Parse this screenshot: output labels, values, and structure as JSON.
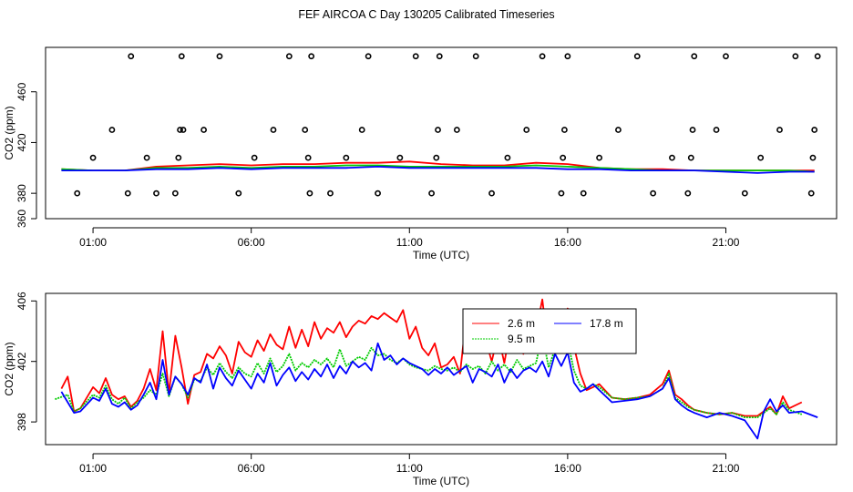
{
  "page_title": "FEF AIRCOA C  Day 130205  Calibrated Timeseries",
  "chart_data": [
    {
      "type": "line+scatter",
      "name": "top",
      "xlabel": "Time (UTC)",
      "ylabel": "CO2 (ppm)",
      "xlim": [
        -0.5,
        24.5
      ],
      "ylim": [
        360,
        495
      ],
      "xticks": [
        1,
        6,
        11,
        16,
        21
      ],
      "xtick_labels": [
        "01:00",
        "06:00",
        "11:00",
        "16:00",
        "21:00"
      ],
      "yticks": [
        360,
        380,
        420,
        460
      ],
      "ytick_labels": [
        "360",
        "380",
        "420",
        "460"
      ],
      "series": [
        {
          "name": "2.6 m",
          "color": "#ff0000",
          "x": [
            0,
            1,
            2,
            3,
            4,
            5,
            6,
            7,
            8,
            9,
            10,
            11,
            12,
            13,
            14,
            15,
            16,
            17,
            18,
            19,
            20,
            21,
            22,
            23,
            23.8
          ],
          "y": [
            399,
            398,
            398,
            401,
            402,
            403,
            402,
            403,
            403,
            404,
            404,
            405,
            403,
            402,
            402,
            404,
            403,
            400,
            399,
            399,
            398,
            398,
            398,
            398,
            398
          ]
        },
        {
          "name": "9.5 m",
          "color": "#00cc00",
          "x": [
            0,
            1,
            2,
            3,
            4,
            5,
            6,
            7,
            8,
            9,
            10,
            11,
            12,
            13,
            14,
            15,
            16,
            17,
            18,
            19,
            20,
            21,
            22,
            23,
            23.8
          ],
          "y": [
            399,
            398,
            398,
            400,
            400,
            401,
            400,
            401,
            401,
            402,
            402,
            401,
            401,
            401,
            401,
            402,
            401,
            400,
            399,
            398,
            398,
            398,
            398,
            398,
            397
          ]
        },
        {
          "name": "17.8 m",
          "color": "#0000ff",
          "x": [
            0,
            1,
            2,
            3,
            4,
            5,
            6,
            7,
            8,
            9,
            10,
            11,
            12,
            13,
            14,
            15,
            16,
            17,
            18,
            19,
            20,
            21,
            22,
            23,
            23.8
          ],
          "y": [
            398,
            398,
            398,
            399,
            399,
            400,
            399,
            400,
            400,
            400,
            401,
            400,
            400,
            400,
            400,
            400,
            399,
            399,
            398,
            398,
            398,
            397,
            396,
            397,
            397
          ]
        },
        {
          "name": "calibration",
          "type": "scatter",
          "marker": "open-circle",
          "x": [
            0.5,
            1.0,
            1.6,
            2.1,
            2.2,
            2.7,
            3.0,
            3.6,
            3.7,
            3.75,
            3.8,
            3.85,
            4.5,
            5.0,
            5.6,
            6.1,
            6.7,
            7.2,
            7.7,
            7.8,
            7.85,
            7.9,
            8.5,
            9.0,
            9.5,
            9.7,
            10.0,
            10.7,
            11.2,
            11.7,
            11.85,
            11.9,
            11.95,
            12.5,
            13.1,
            13.6,
            14.1,
            14.7,
            15.2,
            15.8,
            15.85,
            15.9,
            16.0,
            16.5,
            17.0,
            17.6,
            18.2,
            18.7,
            19.3,
            19.8,
            19.9,
            19.95,
            20.0,
            20.7,
            21.0,
            21.6,
            22.1,
            22.7,
            23.2,
            23.7,
            23.75,
            23.8,
            23.9
          ],
          "y": [
            380,
            408,
            430,
            380,
            488,
            408,
            380,
            380,
            408,
            430,
            488,
            430,
            430,
            488,
            380,
            408,
            430,
            488,
            430,
            408,
            380,
            488,
            380,
            408,
            430,
            488,
            380,
            408,
            488,
            380,
            408,
            430,
            488,
            430,
            488,
            380,
            408,
            430,
            488,
            380,
            408,
            430,
            488,
            380,
            408,
            430,
            488,
            380,
            408,
            380,
            408,
            430,
            488,
            430,
            488,
            380,
            408,
            430,
            488,
            380,
            408,
            430,
            488
          ]
        }
      ]
    },
    {
      "type": "line",
      "name": "bottom",
      "xlabel": "Time (UTC)",
      "ylabel": "CO2 (ppm)",
      "xlim": [
        -0.5,
        24.5
      ],
      "ylim": [
        396.5,
        406.5
      ],
      "xticks": [
        1,
        6,
        11,
        16,
        21
      ],
      "xtick_labels": [
        "01:00",
        "06:00",
        "11:00",
        "16:00",
        "21:00"
      ],
      "yticks": [
        398,
        402,
        406
      ],
      "ytick_labels": [
        "398",
        "402",
        "406"
      ],
      "legend": {
        "position": "top-right-center",
        "entries": [
          "2.6 m",
          "9.5 m",
          "17.8 m"
        ]
      },
      "series": [
        {
          "name": "2.6 m",
          "color": "#ff0000",
          "style": "solid",
          "x": [
            0,
            0.2,
            0.4,
            0.6,
            1.0,
            1.2,
            1.4,
            1.6,
            1.8,
            2.0,
            2.2,
            2.4,
            2.6,
            2.8,
            3.0,
            3.2,
            3.4,
            3.6,
            3.8,
            4.0,
            4.2,
            4.4,
            4.6,
            4.8,
            5.0,
            5.2,
            5.4,
            5.6,
            5.8,
            6.0,
            6.2,
            6.4,
            6.6,
            6.8,
            7.0,
            7.2,
            7.4,
            7.6,
            7.8,
            8.0,
            8.2,
            8.4,
            8.6,
            8.8,
            9.0,
            9.2,
            9.4,
            9.6,
            9.8,
            10.0,
            10.2,
            10.4,
            10.6,
            10.8,
            11.0,
            11.2,
            11.4,
            11.6,
            11.8,
            12.0,
            12.2,
            12.4,
            12.6,
            12.8,
            13.0,
            13.2,
            13.4,
            13.6,
            13.8,
            14.0,
            14.2,
            14.4,
            14.6,
            14.8,
            15.0,
            15.2,
            15.4,
            15.6,
            15.8,
            16.0,
            16.2,
            16.4,
            16.6,
            16.8,
            17.0,
            17.4,
            17.8,
            18.2,
            18.6,
            19.0,
            19.2,
            19.4,
            19.6,
            19.8,
            20.0,
            20.4,
            20.8,
            21.2,
            21.6,
            22.0,
            22.2,
            22.4,
            22.6,
            22.8,
            23.0,
            23.4
          ],
          "y": [
            400.2,
            401.0,
            398.7,
            398.9,
            400.3,
            399.9,
            400.9,
            399.8,
            399.5,
            399.7,
            399.0,
            399.4,
            400.2,
            401.5,
            400.1,
            404.0,
            399.9,
            403.7,
            401.6,
            399.2,
            401.1,
            401.3,
            402.5,
            402.2,
            403.0,
            402.4,
            401.2,
            403.3,
            402.6,
            402.3,
            403.4,
            402.7,
            403.8,
            403.1,
            402.8,
            404.3,
            402.9,
            404.1,
            403.0,
            404.6,
            403.5,
            404.2,
            403.9,
            404.6,
            403.6,
            404.3,
            404.7,
            404.5,
            405.0,
            404.8,
            405.2,
            404.9,
            404.6,
            405.4,
            403.5,
            404.3,
            402.9,
            402.4,
            403.2,
            401.6,
            401.8,
            402.3,
            401.2,
            405.0,
            404.1,
            402.7,
            403.5,
            402.0,
            403.8,
            401.9,
            404.3,
            403.5,
            402.5,
            403.2,
            404.0,
            406.1,
            402.7,
            405.3,
            404.8,
            405.5,
            403.0,
            401.2,
            400.1,
            400.3,
            400.5,
            399.6,
            399.5,
            399.6,
            399.8,
            400.5,
            401.4,
            399.8,
            399.5,
            399.1,
            398.8,
            398.6,
            398.5,
            398.6,
            398.4,
            398.4,
            398.7,
            399.0,
            398.5,
            399.7,
            398.9,
            399.3
          ]
        },
        {
          "name": "9.5 m",
          "color": "#00cc00",
          "style": "dotted",
          "x": [
            -0.2,
            0.2,
            0.4,
            0.6,
            1.0,
            1.2,
            1.4,
            1.6,
            1.8,
            2.0,
            2.2,
            2.4,
            2.6,
            2.8,
            3.0,
            3.2,
            3.4,
            3.6,
            3.8,
            4.0,
            4.2,
            4.4,
            4.6,
            4.8,
            5.0,
            5.2,
            5.4,
            5.6,
            5.8,
            6.0,
            6.2,
            6.4,
            6.6,
            6.8,
            7.0,
            7.2,
            7.4,
            7.6,
            7.8,
            8.0,
            8.2,
            8.4,
            8.6,
            8.8,
            9.0,
            9.2,
            9.4,
            9.6,
            9.8,
            10.0,
            10.2,
            10.4,
            10.6,
            10.8,
            11.0,
            11.2,
            11.4,
            11.6,
            11.8,
            12.0,
            12.2,
            12.4,
            12.6,
            12.8,
            13.0,
            13.2,
            13.4,
            13.6,
            13.8,
            14.0,
            14.2,
            14.4,
            14.6,
            14.8,
            15.0,
            15.2,
            15.4,
            15.6,
            15.8,
            16.0,
            16.2,
            16.4,
            16.6,
            16.8,
            17.0,
            17.4,
            17.8,
            18.2,
            18.6,
            19.0,
            19.2,
            19.4,
            19.6,
            19.8,
            20.0,
            20.4,
            20.8,
            21.2,
            21.6,
            22.0,
            22.2,
            22.4,
            22.6,
            22.8,
            23.0,
            23.4
          ],
          "y": [
            399.5,
            399.8,
            398.7,
            398.9,
            399.8,
            399.6,
            400.4,
            399.5,
            399.2,
            399.6,
            398.9,
            399.3,
            399.6,
            400.1,
            399.8,
            401.2,
            399.7,
            401.0,
            400.5,
            399.6,
            400.8,
            400.7,
            401.6,
            401.1,
            401.9,
            401.3,
            400.9,
            401.6,
            401.2,
            401.0,
            401.9,
            401.2,
            402.2,
            401.3,
            401.7,
            402.5,
            401.4,
            401.9,
            401.6,
            402.1,
            401.8,
            402.2,
            401.6,
            402.8,
            401.7,
            402.0,
            402.3,
            402.1,
            402.9,
            402.4,
            402.5,
            402.1,
            401.9,
            402.2,
            401.8,
            401.6,
            401.5,
            401.4,
            401.7,
            401.5,
            401.4,
            401.6,
            401.3,
            401.8,
            401.5,
            401.7,
            401.2,
            402.0,
            401.4,
            401.8,
            401.3,
            402.1,
            401.5,
            401.7,
            401.9,
            403.8,
            401.6,
            402.8,
            403.1,
            403.4,
            401.4,
            400.4,
            400.2,
            400.5,
            400.3,
            399.6,
            399.5,
            399.6,
            399.7,
            400.2,
            401.2,
            399.6,
            399.3,
            399.0,
            398.8,
            398.6,
            398.5,
            398.6,
            398.3,
            398.3,
            398.6,
            398.9,
            398.5,
            399.3,
            398.8,
            398.5
          ]
        },
        {
          "name": "17.8 m",
          "color": "#0000ff",
          "style": "solid",
          "x": [
            0,
            0.2,
            0.4,
            0.6,
            1.0,
            1.2,
            1.4,
            1.6,
            1.8,
            2.0,
            2.2,
            2.4,
            2.6,
            2.8,
            3.0,
            3.2,
            3.4,
            3.6,
            3.8,
            4.0,
            4.2,
            4.4,
            4.6,
            4.8,
            5.0,
            5.2,
            5.4,
            5.6,
            5.8,
            6.0,
            6.2,
            6.4,
            6.6,
            6.8,
            7.0,
            7.2,
            7.4,
            7.6,
            7.8,
            8.0,
            8.2,
            8.4,
            8.6,
            8.8,
            9.0,
            9.2,
            9.4,
            9.6,
            9.8,
            10.0,
            10.2,
            10.4,
            10.6,
            10.8,
            11.0,
            11.2,
            11.4,
            11.6,
            11.8,
            12.0,
            12.2,
            12.4,
            12.6,
            12.8,
            13.0,
            13.2,
            13.4,
            13.6,
            13.8,
            14.0,
            14.2,
            14.4,
            14.6,
            14.8,
            15.0,
            15.2,
            15.4,
            15.6,
            15.8,
            16.0,
            16.2,
            16.4,
            16.6,
            16.8,
            17.0,
            17.4,
            17.8,
            18.2,
            18.6,
            19.0,
            19.2,
            19.4,
            19.6,
            19.8,
            20.0,
            20.4,
            20.8,
            21.2,
            21.6,
            22.0,
            22.2,
            22.4,
            22.6,
            22.8,
            23.0,
            23.4,
            23.9
          ],
          "y": [
            400.0,
            399.3,
            398.6,
            398.7,
            399.6,
            399.4,
            400.2,
            399.2,
            399.0,
            399.3,
            398.8,
            399.1,
            399.8,
            400.6,
            399.5,
            402.1,
            399.8,
            401.0,
            400.5,
            399.8,
            400.9,
            400.6,
            401.8,
            400.2,
            401.6,
            400.9,
            400.4,
            401.4,
            400.8,
            400.2,
            401.2,
            400.6,
            401.9,
            400.4,
            401.1,
            401.6,
            400.7,
            401.3,
            400.8,
            401.5,
            401.0,
            401.8,
            400.9,
            401.7,
            401.2,
            402.0,
            401.6,
            401.9,
            401.4,
            403.2,
            402.1,
            402.4,
            401.8,
            402.2,
            401.9,
            401.7,
            401.5,
            401.1,
            401.5,
            401.2,
            401.6,
            401.1,
            401.4,
            401.7,
            400.6,
            401.5,
            401.3,
            401.0,
            401.8,
            400.6,
            401.5,
            400.9,
            401.4,
            401.6,
            401.3,
            402.0,
            401.0,
            402.5,
            401.7,
            402.6,
            400.6,
            400.0,
            400.2,
            400.5,
            400.1,
            399.3,
            399.4,
            399.5,
            399.7,
            400.2,
            400.9,
            399.5,
            399.1,
            398.8,
            398.6,
            398.3,
            398.6,
            398.4,
            398.1,
            396.9,
            398.7,
            399.5,
            398.7,
            399.1,
            398.6,
            398.7,
            398.3
          ]
        }
      ]
    }
  ]
}
